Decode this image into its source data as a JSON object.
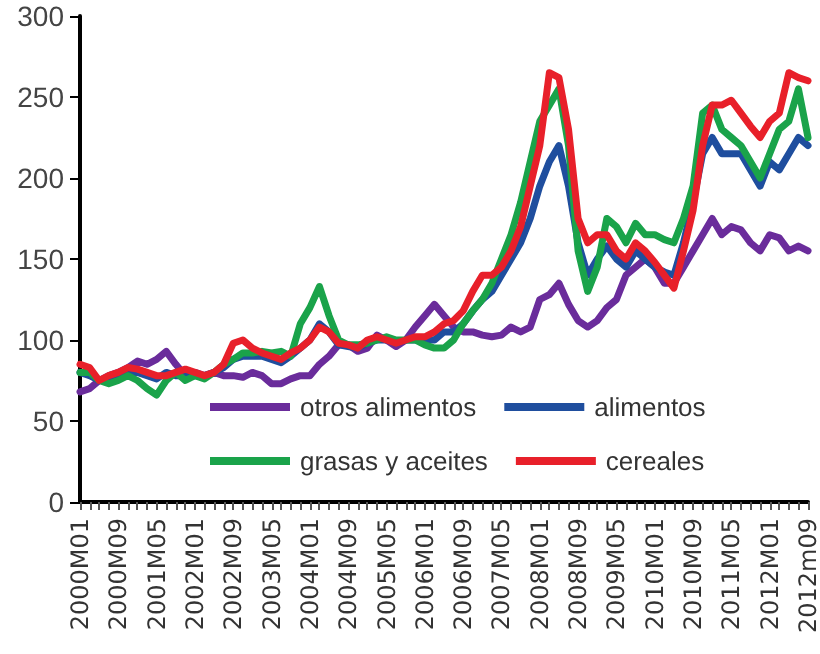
{
  "chart_data": {
    "type": "line",
    "categories": [
      "2000M01",
      null,
      null,
      null,
      "2000M09",
      null,
      null,
      null,
      "2001M05",
      null,
      null,
      null,
      "2002M01",
      null,
      null,
      null,
      "2002M09",
      null,
      null,
      null,
      "2003M05",
      null,
      null,
      null,
      "2004M01",
      null,
      null,
      null,
      "2004M09",
      null,
      null,
      null,
      "2005M05",
      null,
      null,
      null,
      "2006M01",
      null,
      null,
      null,
      "2006M09",
      null,
      null,
      null,
      "2007M05",
      null,
      null,
      null,
      "2008M01",
      null,
      null,
      null,
      "2008M09",
      null,
      null,
      null,
      "2009M05",
      null,
      null,
      null,
      "2010M01",
      null,
      null,
      null,
      "2010M09",
      null,
      null,
      null,
      "2011M05",
      null,
      null,
      null,
      "2012M01",
      null,
      null,
      null,
      "2012m09"
    ],
    "series": [
      {
        "name": "otros alimentos",
        "color": "#6a2c9b",
        "values": [
          68,
          70,
          75,
          78,
          80,
          83,
          87,
          85,
          88,
          93,
          85,
          78,
          80,
          78,
          80,
          78,
          78,
          77,
          80,
          78,
          73,
          73,
          76,
          78,
          78,
          85,
          90,
          97,
          97,
          93,
          95,
          103,
          100,
          96,
          100,
          108,
          115,
          122,
          115,
          108,
          105,
          105,
          103,
          102,
          103,
          108,
          105,
          108,
          125,
          128,
          135,
          122,
          112,
          108,
          112,
          120,
          125,
          140,
          145,
          150,
          145,
          135,
          135,
          145,
          155,
          165,
          175,
          165,
          170,
          168,
          160,
          155,
          165,
          163,
          155,
          158,
          155
        ]
      },
      {
        "name": "alimentos",
        "color": "#1f4e9e",
        "values": [
          80,
          78,
          75,
          76,
          78,
          80,
          80,
          78,
          76,
          80,
          78,
          78,
          78,
          78,
          80,
          83,
          88,
          90,
          90,
          90,
          88,
          86,
          90,
          95,
          100,
          110,
          105,
          97,
          96,
          95,
          98,
          100,
          100,
          98,
          100,
          100,
          100,
          100,
          105,
          105,
          110,
          118,
          125,
          130,
          140,
          150,
          160,
          175,
          195,
          210,
          220,
          195,
          160,
          140,
          150,
          158,
          150,
          145,
          155,
          150,
          145,
          142,
          140,
          160,
          185,
          215,
          225,
          215,
          215,
          215,
          205,
          195,
          210,
          205,
          215,
          225,
          220
        ]
      },
      {
        "name": "grasas y aceites",
        "color": "#1aa34a",
        "values": [
          80,
          80,
          75,
          73,
          75,
          78,
          75,
          70,
          66,
          75,
          80,
          75,
          78,
          76,
          80,
          85,
          88,
          92,
          92,
          93,
          92,
          93,
          90,
          110,
          120,
          133,
          115,
          100,
          97,
          97,
          98,
          100,
          102,
          100,
          100,
          100,
          97,
          95,
          95,
          100,
          110,
          118,
          125,
          135,
          150,
          165,
          185,
          210,
          235,
          245,
          255,
          220,
          155,
          130,
          145,
          175,
          170,
          160,
          172,
          165,
          165,
          162,
          160,
          175,
          195,
          240,
          245,
          230,
          225,
          220,
          210,
          200,
          215,
          230,
          235,
          255,
          225
        ]
      },
      {
        "name": "cereales",
        "color": "#e8202a",
        "values": [
          85,
          83,
          75,
          78,
          80,
          83,
          82,
          80,
          78,
          78,
          80,
          82,
          80,
          78,
          80,
          85,
          98,
          100,
          95,
          92,
          90,
          88,
          92,
          95,
          100,
          108,
          105,
          98,
          97,
          95,
          100,
          102,
          100,
          98,
          100,
          102,
          102,
          105,
          110,
          112,
          118,
          130,
          140,
          140,
          145,
          155,
          170,
          195,
          220,
          265,
          262,
          230,
          175,
          160,
          165,
          165,
          155,
          150,
          160,
          155,
          148,
          140,
          132,
          155,
          180,
          220,
          245,
          245,
          248,
          240,
          232,
          225,
          235,
          240,
          265,
          262,
          260
        ]
      }
    ],
    "ylim": [
      0,
      300
    ],
    "yticks": [
      0,
      50,
      100,
      150,
      200,
      250,
      300
    ],
    "grid": false,
    "legend": "bottom",
    "marker": "none",
    "line_style": "solid"
  }
}
